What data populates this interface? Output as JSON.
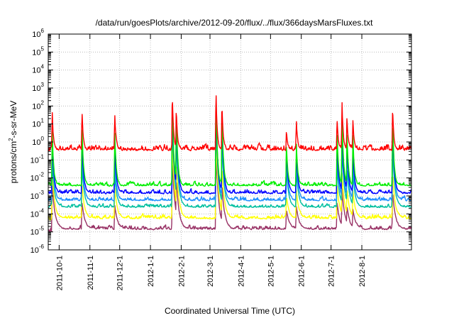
{
  "chart_data": {
    "type": "line",
    "title": "/data/run/goesPlots/archive/2012-09-20/flux/../flux/366daysMarsFluxes.txt",
    "xlabel": "Coordinated Universal Time (UTC)",
    "ylabel": {
      "base": "protons/cm",
      "sup": "2",
      "rest": "-s-sr-MeV"
    },
    "y_scale": "log",
    "ylim": [
      1e-06,
      1000000.0
    ],
    "y_ticks": [
      {
        "value": -6,
        "base": "10",
        "exp": "-6"
      },
      {
        "value": -5,
        "base": "10",
        "exp": "-5"
      },
      {
        "value": -4,
        "base": "10",
        "exp": "-4"
      },
      {
        "value": -3,
        "base": "10",
        "exp": "-3"
      },
      {
        "value": -2,
        "base": "10",
        "exp": "-2"
      },
      {
        "value": -1,
        "base": "10",
        "exp": "-1"
      },
      {
        "value": 0,
        "base": "10",
        "exp": "0"
      },
      {
        "value": 1,
        "base": "10",
        "exp": "1"
      },
      {
        "value": 2,
        "base": "10",
        "exp": "2"
      },
      {
        "value": 3,
        "base": "10",
        "exp": "3"
      },
      {
        "value": 4,
        "base": "10",
        "exp": "4"
      },
      {
        "value": 5,
        "base": "10",
        "exp": "5"
      },
      {
        "value": 6,
        "base": "10",
        "exp": "6"
      }
    ],
    "xlim": [
      "2011-09-20",
      "2012-09-20"
    ],
    "x_ticks": [
      "2011-10-1",
      "2011-11-1",
      "2011-12-1",
      "2012-1-1",
      "2012-2-1",
      "2012-3-1",
      "2012-4-1",
      "2012-5-1",
      "2012-6-1",
      "2012-7-1",
      "2012-8-1"
    ],
    "x_tick_dates": [
      "2011-10-01",
      "2011-11-01",
      "2011-12-01",
      "2012-01-01",
      "2012-02-01",
      "2012-03-01",
      "2012-04-01",
      "2012-05-01",
      "2012-06-01",
      "2012-07-01",
      "2012-08-01"
    ],
    "grid": true,
    "series": [
      {
        "color": "#ff0000",
        "baseline": 0.4,
        "noise": 0.45
      },
      {
        "color": "#00ee00",
        "baseline": 0.004,
        "noise": 0.3
      },
      {
        "color": "#0000ff",
        "baseline": 0.0015,
        "noise": 0.3
      },
      {
        "color": "#1e90ff",
        "baseline": 0.0006,
        "noise": 0.3
      },
      {
        "color": "#00c0a0",
        "baseline": 0.00025,
        "noise": 0.25
      },
      {
        "color": "#ffff00",
        "baseline": 6e-05,
        "noise": 0.3
      },
      {
        "color": "#993366",
        "baseline": 1.5e-05,
        "noise": 0.3
      }
    ],
    "events": [
      {
        "date": "2011-09-24",
        "peaks": [
          50,
          5,
          1.5,
          0.5,
          0.1,
          0.02,
          0.005
        ]
      },
      {
        "date": "2011-10-24",
        "peaks": [
          70,
          10,
          1,
          0.2,
          0.05,
          0.005,
          0.0005
        ]
      },
      {
        "date": "2011-11-26",
        "peaks": [
          40,
          5,
          0.5,
          0.1,
          0.02,
          0.003,
          0.0003
        ]
      },
      {
        "date": "2012-01-23",
        "peaks": [
          700,
          400,
          150,
          80,
          20,
          1,
          0.1
        ]
      },
      {
        "date": "2012-01-27",
        "peaks": [
          100,
          100,
          30,
          10,
          2,
          0.1,
          0.01
        ]
      },
      {
        "date": "2012-03-07",
        "peaks": [
          1000,
          600,
          200,
          100,
          30,
          2,
          0.3
        ]
      },
      {
        "date": "2012-03-13",
        "peaks": [
          200,
          100,
          20,
          5,
          1,
          0.05,
          0.005
        ]
      },
      {
        "date": "2012-05-17",
        "peaks": [
          5,
          1,
          0.3,
          0.1,
          0.03,
          0.001,
          0.0002
        ]
      },
      {
        "date": "2012-05-27",
        "peaks": [
          15,
          1,
          0.3,
          0.1,
          0.03,
          0.002,
          0.0003
        ]
      },
      {
        "date": "2012-07-07",
        "peaks": [
          20,
          5,
          1,
          0.3,
          0.05,
          0.005,
          0.0005
        ]
      },
      {
        "date": "2012-07-12",
        "peaks": [
          200,
          50,
          10,
          3,
          0.5,
          0.02,
          0.003
        ]
      },
      {
        "date": "2012-07-17",
        "peaks": [
          30,
          5,
          1,
          0.3,
          0.05,
          0.003,
          0.0003
        ]
      },
      {
        "date": "2012-07-23",
        "peaks": [
          15,
          3,
          0.5,
          0.1,
          0.02,
          0.002,
          0.0002
        ]
      },
      {
        "date": "2012-09-01",
        "peaks": [
          120,
          30,
          8,
          3,
          0.5,
          0.02,
          0.002
        ]
      }
    ]
  }
}
